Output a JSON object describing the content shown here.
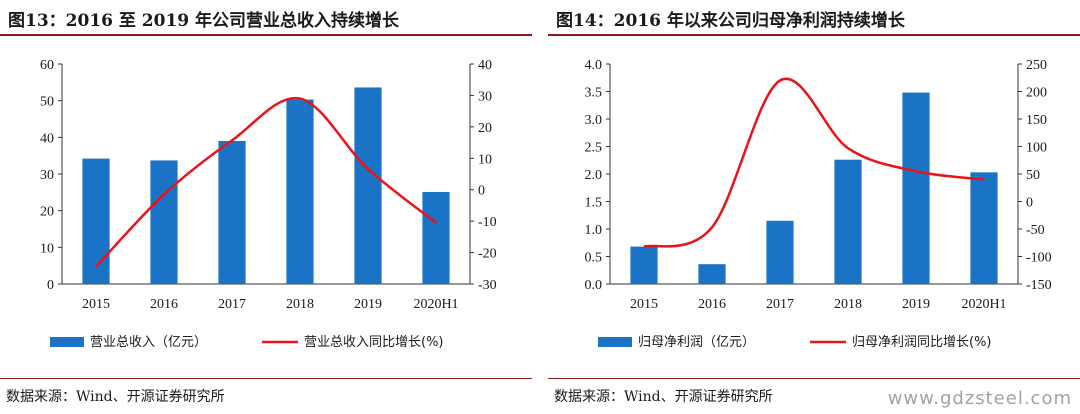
{
  "colors": {
    "bar": "#1a73c4",
    "line": "#e8141a",
    "rule": "#8a1c1c"
  },
  "chart_data": [
    {
      "type": "bar",
      "title": "图13：2016 至 2019 年公司营业总收入持续增长",
      "categories": [
        "2015",
        "2016",
        "2017",
        "2018",
        "2019",
        "2020H1"
      ],
      "ylim": [
        0,
        60
      ],
      "yticks": [
        0,
        10,
        20,
        30,
        40,
        50,
        60
      ],
      "y2lim": [
        -30,
        40
      ],
      "y2ticks": [
        -30,
        -20,
        -10,
        0,
        10,
        20,
        30,
        40
      ],
      "series": [
        {
          "name": "营业总收入（亿元）",
          "type": "bar",
          "axis": "left",
          "values": [
            34.2,
            33.7,
            39.0,
            50.3,
            53.6,
            25.1
          ]
        },
        {
          "name": "营业总收入同比增长(%)",
          "type": "line",
          "axis": "right",
          "values": [
            -24.5,
            -1.5,
            15.7,
            29.0,
            6.6,
            -10.5
          ]
        }
      ],
      "legend_position": "bottom",
      "source": "数据来源：Wind、开源证券研究所"
    },
    {
      "type": "bar",
      "title": "图14：2016 年以来公司归母净利润持续增长",
      "categories": [
        "2015",
        "2016",
        "2017",
        "2018",
        "2019",
        "2020H1"
      ],
      "ylim": [
        0,
        4
      ],
      "yticks": [
        "0.0",
        "0.5",
        "1.0",
        "1.5",
        "2.0",
        "2.5",
        "3.0",
        "3.5",
        "4.0"
      ],
      "y2lim": [
        -150,
        250
      ],
      "y2ticks": [
        -150,
        -100,
        -50,
        0,
        50,
        100,
        150,
        200,
        250
      ],
      "series": [
        {
          "name": "归母净利润（亿元）",
          "type": "bar",
          "axis": "left",
          "values": [
            0.68,
            0.36,
            1.15,
            2.26,
            3.48,
            2.03
          ]
        },
        {
          "name": "归母净利润同比增长(%)",
          "type": "line",
          "axis": "right",
          "values": [
            -82,
            -47,
            220,
            97,
            55,
            40
          ]
        }
      ],
      "legend_position": "bottom",
      "source": "数据来源：Wind、开源证券研究所"
    }
  ],
  "watermark": "www.gdzsteel.com"
}
